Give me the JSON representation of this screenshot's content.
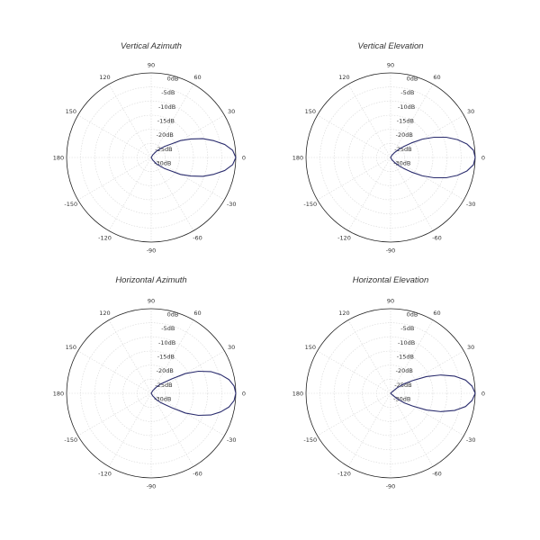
{
  "chart_data": [
    {
      "type": "polar",
      "title": "Vertical Azimuth",
      "radial_labels": [
        "0dB",
        "-5dB",
        "-10dB",
        "-15dB",
        "-20dB",
        "-25dB",
        "-30dB"
      ],
      "angle_labels": [
        "90",
        "60",
        "30",
        "0",
        "-30",
        "-60",
        "-90",
        "-120",
        "-150",
        "180",
        "150",
        "120"
      ],
      "rlim": [
        -30,
        0
      ],
      "pattern": {
        "angles_deg": [
          -90,
          -80,
          -70,
          -60,
          -50,
          -45,
          -40,
          -35,
          -30,
          -25,
          -20,
          -15,
          -10,
          -5,
          0,
          5,
          10,
          15,
          20,
          25,
          30,
          35,
          40,
          45,
          50,
          60,
          70,
          80,
          90
        ],
        "gain_db": [
          -30,
          -30,
          -30,
          -29,
          -27,
          -26,
          -24,
          -22,
          -18,
          -14.5,
          -10.5,
          -7,
          -3.5,
          -1,
          0,
          -1,
          -3.5,
          -7,
          -10.5,
          -14.5,
          -18,
          -22,
          -24,
          -26,
          -27,
          -29,
          -30,
          -30,
          -30
        ]
      }
    },
    {
      "type": "polar",
      "title": "Vertical Elevation",
      "radial_labels": [
        "0dB",
        "-5dB",
        "-10dB",
        "-15dB",
        "-20dB",
        "-25dB",
        "-30dB"
      ],
      "angle_labels": [
        "90",
        "60",
        "30",
        "0",
        "-30",
        "-60",
        "-90",
        "-120",
        "-150",
        "180",
        "150",
        "120"
      ],
      "rlim": [
        -30,
        0
      ],
      "pattern": {
        "angles_deg": [
          -90,
          -80,
          -70,
          -60,
          -50,
          -45,
          -40,
          -35,
          -30,
          -25,
          -20,
          -15,
          -10,
          -5,
          0,
          5,
          10,
          15,
          20,
          25,
          30,
          35,
          40,
          45,
          50,
          60,
          70,
          80,
          90
        ],
        "gain_db": [
          -30,
          -30,
          -30,
          -29,
          -27.5,
          -26,
          -24,
          -21,
          -17,
          -13,
          -9,
          -5.5,
          -2.5,
          -0.5,
          0,
          -0.5,
          -2.5,
          -5.5,
          -9,
          -13,
          -17,
          -21,
          -24,
          -26,
          -27.5,
          -29,
          -30,
          -30,
          -30
        ]
      }
    },
    {
      "type": "polar",
      "title": "Horizontal Azimuth",
      "radial_labels": [
        "0dB",
        "-5dB",
        "-10dB",
        "-15dB",
        "-20dB",
        "-25dB",
        "-30dB"
      ],
      "angle_labels": [
        "90",
        "60",
        "30",
        "0",
        "-30",
        "-60",
        "-90",
        "-120",
        "-150",
        "180",
        "150",
        "120"
      ],
      "rlim": [
        -30,
        0
      ],
      "pattern": {
        "angles_deg": [
          -90,
          -80,
          -70,
          -60,
          -50,
          -45,
          -40,
          -35,
          -30,
          -25,
          -20,
          -15,
          -10,
          -5,
          0,
          5,
          10,
          15,
          20,
          25,
          30,
          35,
          40,
          45,
          50,
          60,
          70,
          80,
          90
        ],
        "gain_db": [
          -30,
          -30,
          -30,
          -29,
          -27,
          -25.5,
          -24,
          -21,
          -16,
          -11.5,
          -7.5,
          -4.5,
          -2,
          -0.5,
          0,
          -0.5,
          -2,
          -4.5,
          -7.5,
          -11.5,
          -16,
          -21,
          -24,
          -25.5,
          -27,
          -29,
          -30,
          -30,
          -30
        ]
      }
    },
    {
      "type": "polar",
      "title": "Horizontal Elevation",
      "radial_labels": [
        "0dB",
        "-5dB",
        "-10dB",
        "-15dB",
        "-20dB",
        "-25dB",
        "-30dB"
      ],
      "angle_labels": [
        "90",
        "60",
        "30",
        "0",
        "-30",
        "-60",
        "-90",
        "-120",
        "-150",
        "180",
        "150",
        "120"
      ],
      "rlim": [
        -30,
        0
      ],
      "pattern": {
        "angles_deg": [
          -90,
          -80,
          -70,
          -60,
          -50,
          -45,
          -40,
          -35,
          -30,
          -25,
          -20,
          -15,
          -10,
          -5,
          0,
          5,
          10,
          15,
          20,
          25,
          30,
          35,
          40,
          45,
          50,
          60,
          70,
          80,
          90
        ],
        "gain_db": [
          -30,
          -30,
          -30,
          -30,
          -30,
          -29.5,
          -27,
          -24,
          -21,
          -16,
          -11,
          -6.5,
          -3,
          -1,
          0,
          -1,
          -3,
          -6.5,
          -11,
          -16,
          -21,
          -24,
          -27,
          -29.5,
          -30,
          -30,
          -30,
          -30,
          -30
        ]
      }
    }
  ]
}
